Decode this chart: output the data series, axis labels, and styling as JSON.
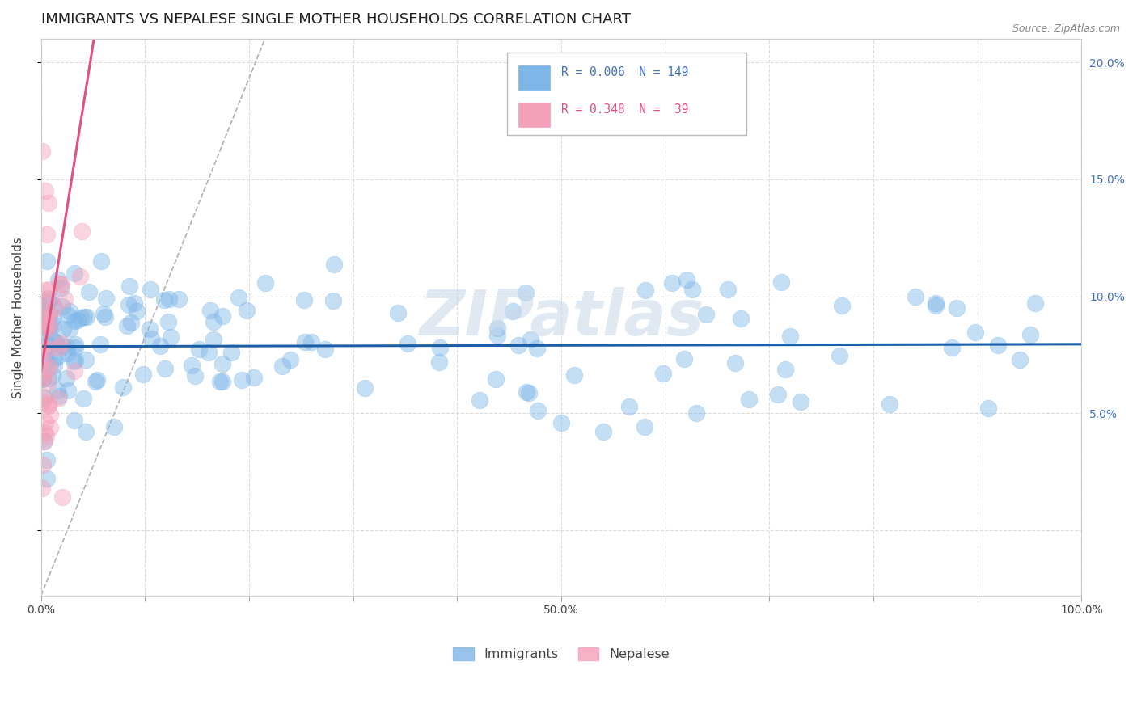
{
  "title": "IMMIGRANTS VS NEPALESE SINGLE MOTHER HOUSEHOLDS CORRELATION CHART",
  "source": "Source: ZipAtlas.com",
  "ylabel": "Single Mother Households",
  "blue_R": "0.006",
  "blue_N": "149",
  "pink_R": "0.348",
  "pink_N": "39",
  "xlim": [
    0.0,
    1.0
  ],
  "ylim": [
    -0.028,
    0.21
  ],
  "xtick_vals": [
    0.0,
    0.1,
    0.2,
    0.3,
    0.4,
    0.5,
    0.6,
    0.7,
    0.8,
    0.9,
    1.0
  ],
  "xtick_labels": [
    "0.0%",
    "",
    "",
    "",
    "",
    "50.0%",
    "",
    "",
    "",
    "",
    "100.0%"
  ],
  "ytick_vals": [
    0.0,
    0.05,
    0.1,
    0.15,
    0.2
  ],
  "ytick_labels_right": [
    "",
    "5.0%",
    "10.0%",
    "15.0%",
    "20.0%"
  ],
  "background_color": "#ffffff",
  "grid_color": "#dddddd",
  "blue_dot_color": "#7eb6e8",
  "pink_dot_color": "#f4a0b8",
  "blue_line_color": "#1a5fa8",
  "pink_line_color": "#e05080",
  "watermark": "ZIPatlas",
  "watermark_color": "#c8d8e8",
  "dot_size": 220,
  "dot_alpha": 0.45,
  "title_fontsize": 13,
  "axis_label_fontsize": 11,
  "tick_fontsize": 10,
  "right_tick_color": "#4472c4"
}
